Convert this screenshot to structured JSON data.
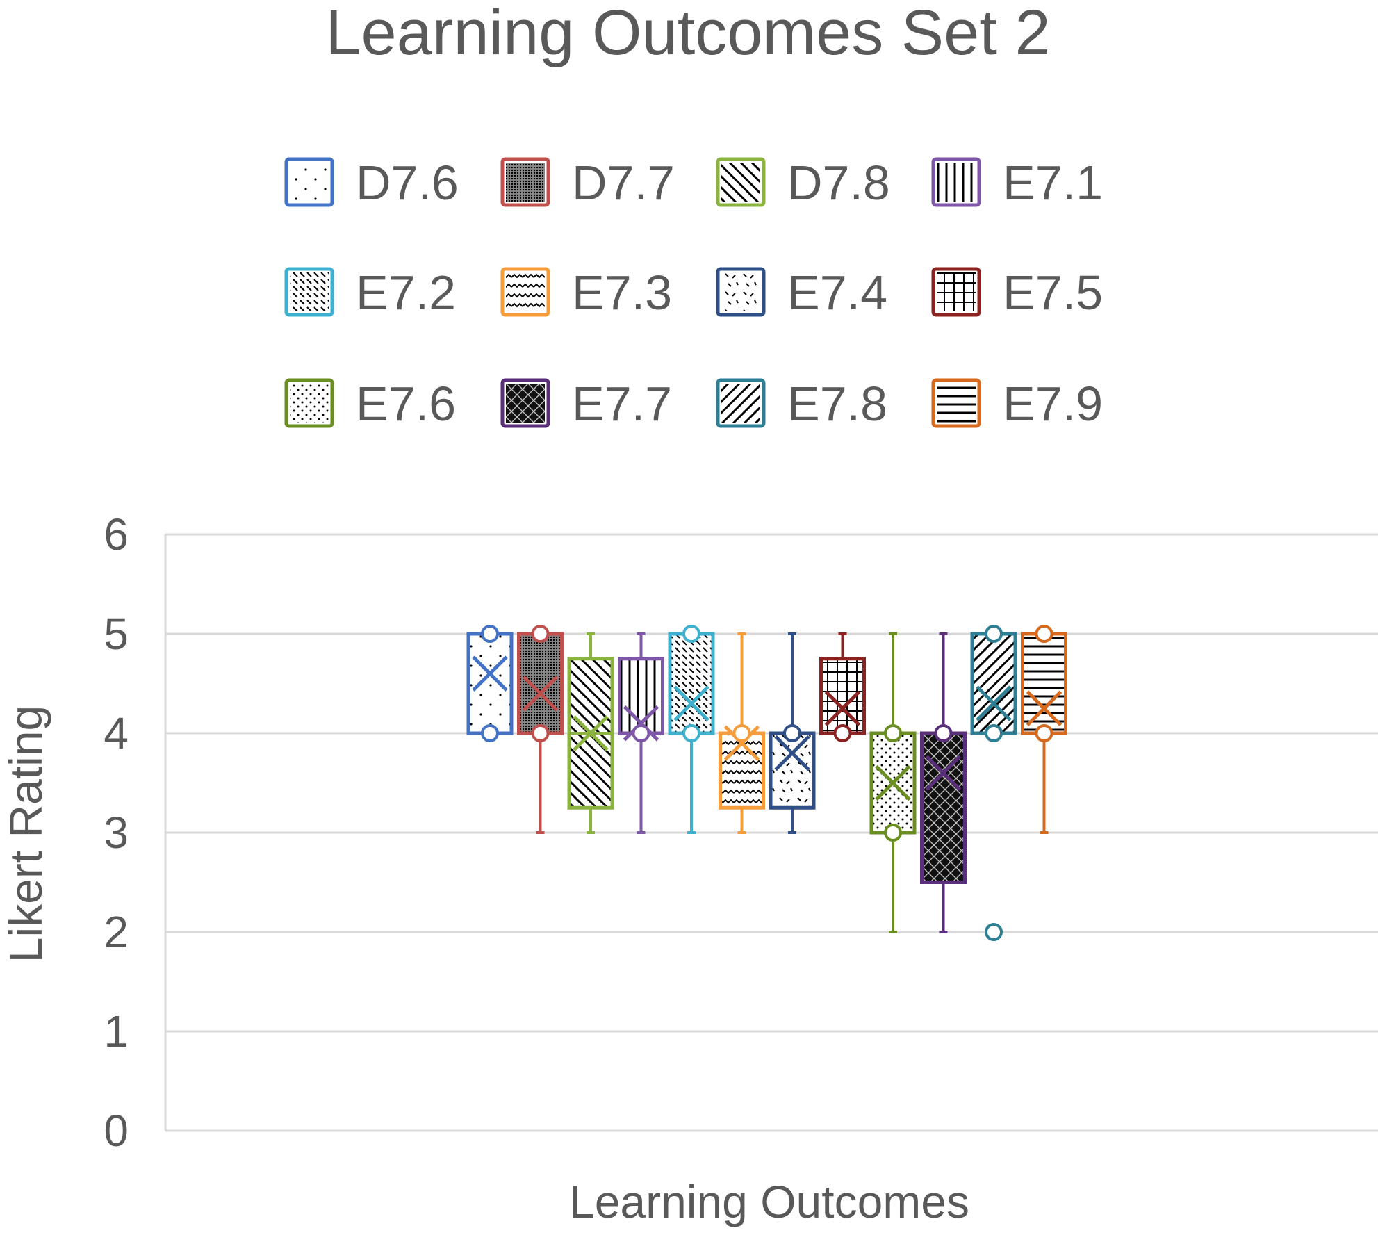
{
  "chart_data": {
    "type": "box",
    "title": "Learning Outcomes Set 2",
    "xlabel": "Learning Outcomes",
    "ylabel": "Likert Rating",
    "ylim": [
      0,
      6
    ],
    "yticks": [
      0,
      1,
      2,
      3,
      4,
      5,
      6
    ],
    "grid": true,
    "legend_position": "top",
    "series": [
      {
        "name": "D7.6",
        "color": "#4472C4",
        "pattern": "sparse-dots",
        "min": 4,
        "q1": 4,
        "median": 5,
        "q3": 5,
        "max": 5,
        "mean": 4.6,
        "outliers": []
      },
      {
        "name": "D7.7",
        "color": "#C0504D",
        "pattern": "dense-dots",
        "min": 3,
        "q1": 4,
        "median": 4,
        "q3": 5,
        "max": 5,
        "mean": 4.4,
        "outliers": []
      },
      {
        "name": "D7.8",
        "color": "#8BB33F",
        "pattern": "wide-downward-diagonal",
        "min": 3,
        "q1": 3.25,
        "median": 4,
        "q3": 4.75,
        "max": 5,
        "mean": 4.0,
        "outliers": []
      },
      {
        "name": "E7.1",
        "color": "#7E57A8",
        "pattern": "vertical-lines",
        "min": 3,
        "q1": 4,
        "median": 4,
        "q3": 4.75,
        "max": 5,
        "mean": 4.1,
        "outliers": []
      },
      {
        "name": "E7.2",
        "color": "#3FB1CF",
        "pattern": "dashed-downward-diagonal",
        "min": 3,
        "q1": 4,
        "median": 4,
        "q3": 5,
        "max": 5,
        "mean": 4.3,
        "outliers": []
      },
      {
        "name": "E7.3",
        "color": "#F59C3C",
        "pattern": "wave",
        "min": 3,
        "q1": 3.25,
        "median": 4,
        "q3": 4,
        "max": 5,
        "mean": 3.9,
        "outliers": []
      },
      {
        "name": "E7.4",
        "color": "#2F4F86",
        "pattern": "confetti",
        "min": 3,
        "q1": 3.25,
        "median": 4,
        "q3": 4,
        "max": 5,
        "mean": 3.8,
        "outliers": []
      },
      {
        "name": "E7.5",
        "color": "#8B2323",
        "pattern": "grid",
        "min": 4,
        "q1": 4,
        "median": 4,
        "q3": 4.75,
        "max": 5,
        "mean": 4.25,
        "outliers": []
      },
      {
        "name": "E7.6",
        "color": "#6B8E23",
        "pattern": "small-dots",
        "min": 2,
        "q1": 3,
        "median": 4,
        "q3": 4,
        "max": 5,
        "mean": 3.5,
        "outliers": []
      },
      {
        "name": "E7.7",
        "color": "#5A2F7A",
        "pattern": "dark-diamond",
        "min": 2,
        "q1": 2.5,
        "median": 4,
        "q3": 4,
        "max": 5,
        "mean": 3.6,
        "outliers": []
      },
      {
        "name": "E7.8",
        "color": "#2E7F93",
        "pattern": "wide-upward-diagonal",
        "min": 4,
        "q1": 4,
        "median": 5,
        "q3": 5,
        "max": 5,
        "mean": 4.3,
        "outliers": [
          2
        ]
      },
      {
        "name": "E7.9",
        "color": "#D5691E",
        "pattern": "horizontal-lines",
        "min": 3,
        "q1": 4,
        "median": 4,
        "q3": 5,
        "max": 5,
        "mean": 4.25,
        "outliers": []
      }
    ]
  }
}
